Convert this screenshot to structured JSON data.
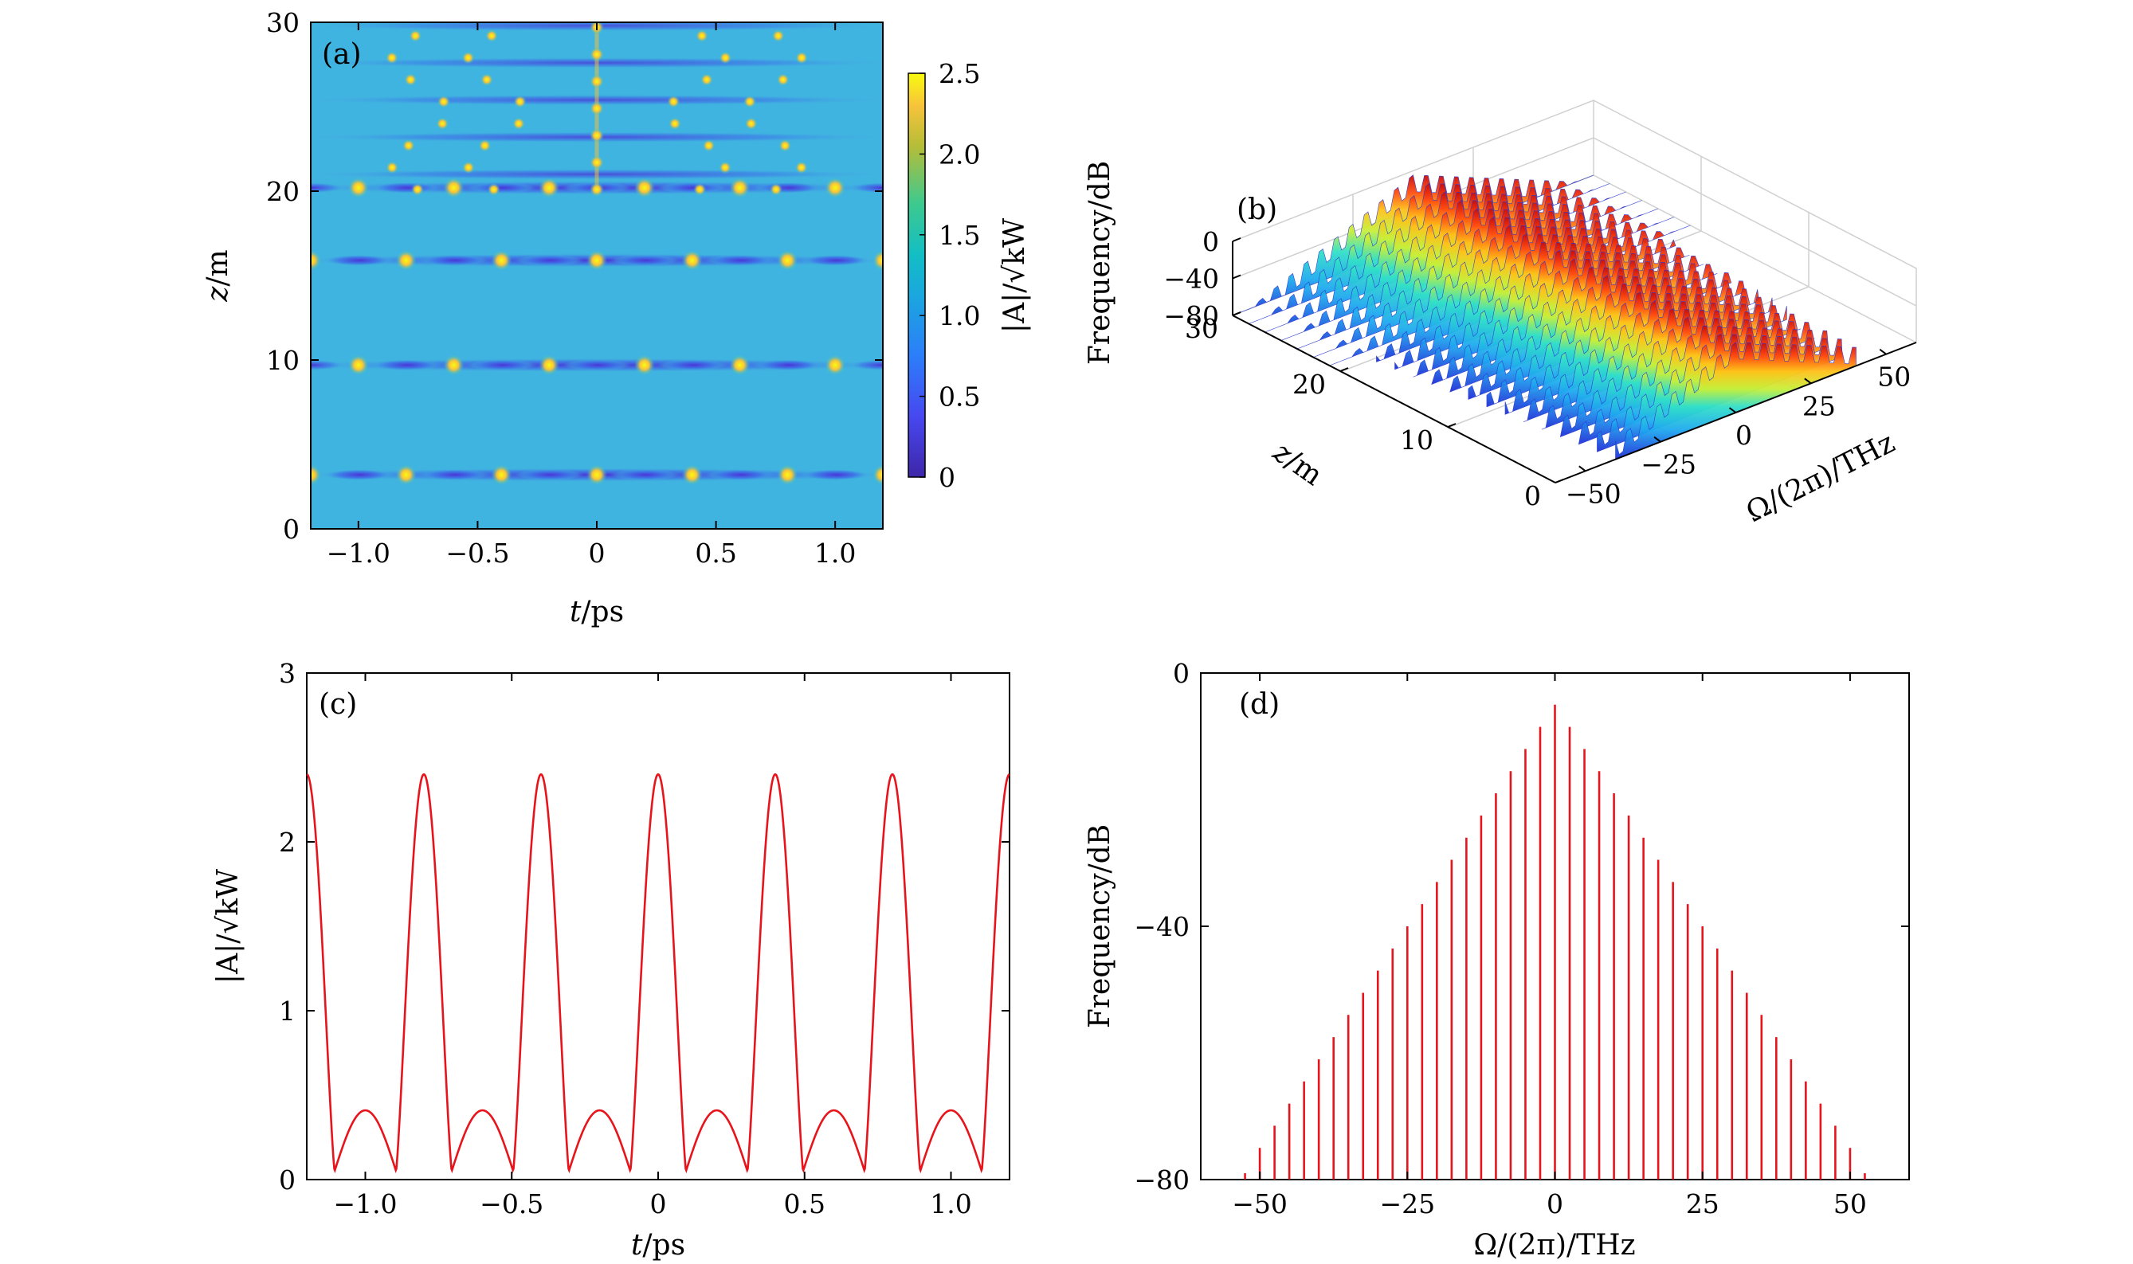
{
  "figure": {
    "panel_a": {
      "label": "(a)",
      "xlabel_var": "t",
      "xlabel_unit": "/ps",
      "ylabel_var": "z",
      "ylabel_unit": "/m",
      "colorbar_label": "|A|/√kW",
      "colorbar_ticks": [
        "0",
        "0.5",
        "1.0",
        "1.5",
        "2.0",
        "2.5"
      ],
      "xticks": [
        "−1.0",
        "−0.5",
        "0",
        "0.5",
        "1.0"
      ],
      "yticks": [
        "0",
        "10",
        "20",
        "30"
      ]
    },
    "panel_b": {
      "label": "(b)",
      "zlabel": "Frequency/dB",
      "zticks": [
        "0",
        "−40",
        "−80"
      ],
      "y_axis_label_var": "z",
      "y_axis_label_unit": "/m",
      "yticks": [
        "0",
        "10",
        "20",
        "30"
      ],
      "x_axis_label": "Ω/(2π)/THz",
      "xticks": [
        "−50",
        "−25",
        "0",
        "25",
        "50"
      ]
    },
    "panel_c": {
      "label": "(c)",
      "xlabel_var": "t",
      "xlabel_unit": "/ps",
      "ylabel": "|A|/√kW",
      "xticks": [
        "−1.0",
        "−0.5",
        "0",
        "0.5",
        "1.0"
      ],
      "yticks": [
        "0",
        "1",
        "2",
        "3"
      ]
    },
    "panel_d": {
      "label": "(d)",
      "xlabel": "Ω/(2π)/THz",
      "ylabel": "Frequency/dB",
      "xticks": [
        "−50",
        "−25",
        "0",
        "25",
        "50"
      ],
      "yticks": [
        "0",
        "−40",
        "−80"
      ]
    }
  },
  "chart_data": [
    {
      "type": "heatmap",
      "id": "a",
      "x_range": [
        -1.2,
        1.2
      ],
      "y_range": [
        0,
        30
      ],
      "z_range": [
        0,
        2.5
      ],
      "colormap": "parula",
      "background_level": 1.3,
      "peak_level": 2.4,
      "peak_periods_t": 0.4,
      "peak_rows_z": [
        3.2,
        9.7,
        15.9,
        20.2
      ],
      "peak_offsets_t_by_row": [
        0,
        0.2,
        0,
        0.2
      ],
      "breakup_region_z": [
        20,
        30
      ]
    },
    {
      "type": "surface3d",
      "id": "b",
      "x_range": [
        -60,
        60
      ],
      "y_range": [
        0,
        30
      ],
      "z_range": [
        -80,
        0
      ],
      "colormap": "jet"
    },
    {
      "type": "line",
      "id": "c",
      "xlim": [
        -1.2,
        1.2
      ],
      "ylim": [
        0,
        3
      ],
      "series": [
        {
          "color": "#e8141b",
          "peak_value": 2.4,
          "peak_t": [
            -1.2,
            -0.8,
            -0.4,
            0,
            0.4,
            0.8,
            1.2
          ],
          "secondary_peak_value": 0.41,
          "secondary_peak_t": [
            -1.0,
            -0.6,
            -0.2,
            0.2,
            0.6,
            1.0
          ],
          "minimum_value": 0.05
        }
      ]
    },
    {
      "type": "bar",
      "id": "d",
      "xlim": [
        -60,
        60
      ],
      "ylim": [
        -80,
        0
      ],
      "color": "#e8141b",
      "x": [
        -52.5,
        -50,
        -47.5,
        -45,
        -42.5,
        -40,
        -37.5,
        -35,
        -32.5,
        -30,
        -27.5,
        -25,
        -22.5,
        -20,
        -17.5,
        -15,
        -12.5,
        -10,
        -7.5,
        -5,
        -2.5,
        0,
        2.5,
        5,
        7.5,
        10,
        12.5,
        15,
        17.5,
        20,
        22.5,
        25,
        27.5,
        30,
        32.5,
        35,
        37.5,
        40,
        42.5,
        45,
        47.5,
        50,
        52.5
      ],
      "values": [
        -79,
        -75,
        -71.5,
        -68,
        -64.5,
        -61,
        -57.5,
        -54,
        -50.5,
        -47,
        -43.5,
        -40,
        -36.5,
        -33,
        -29.5,
        -26,
        -22.5,
        -19,
        -15.5,
        -12,
        -8.5,
        -5,
        -8.5,
        -12,
        -15.5,
        -19,
        -22.5,
        -26,
        -29.5,
        -33,
        -36.5,
        -40,
        -43.5,
        -47,
        -50.5,
        -54,
        -57.5,
        -61,
        -64.5,
        -68,
        -71.5,
        -75,
        -79
      ]
    }
  ]
}
